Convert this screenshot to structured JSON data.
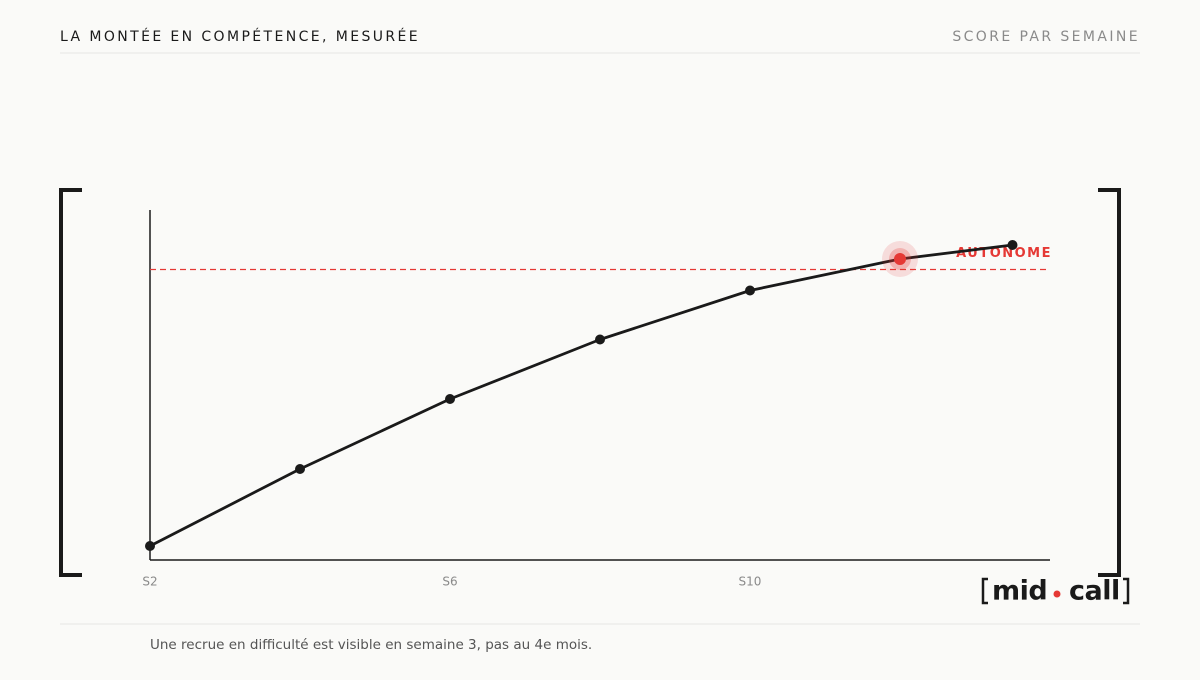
{
  "chart_data": {
    "type": "line",
    "title": "LA MONTÉE EN COMPÉTENCE, MESURÉE",
    "subtitle": "SCORE PAR SEMAINE",
    "x": [
      2,
      4,
      6,
      8,
      10,
      12,
      13.5
    ],
    "values": [
      4,
      26,
      46,
      63,
      77,
      86,
      90
    ],
    "color": "#1a1a1a",
    "xlim": [
      2,
      14
    ],
    "xticks": [
      {
        "value": 2,
        "label": "S2"
      },
      {
        "value": 6,
        "label": "S6"
      },
      {
        "value": 10,
        "label": "S10"
      }
    ],
    "ylim": [
      0,
      100
    ],
    "threshold": {
      "value": 83,
      "label": "AUTONOME",
      "color": "#e53935"
    }
  },
  "note": "Une recrue en difficulté est visible en semaine 3, pas au 4e mois.",
  "logo": {
    "left": "mid",
    "right": "call"
  }
}
